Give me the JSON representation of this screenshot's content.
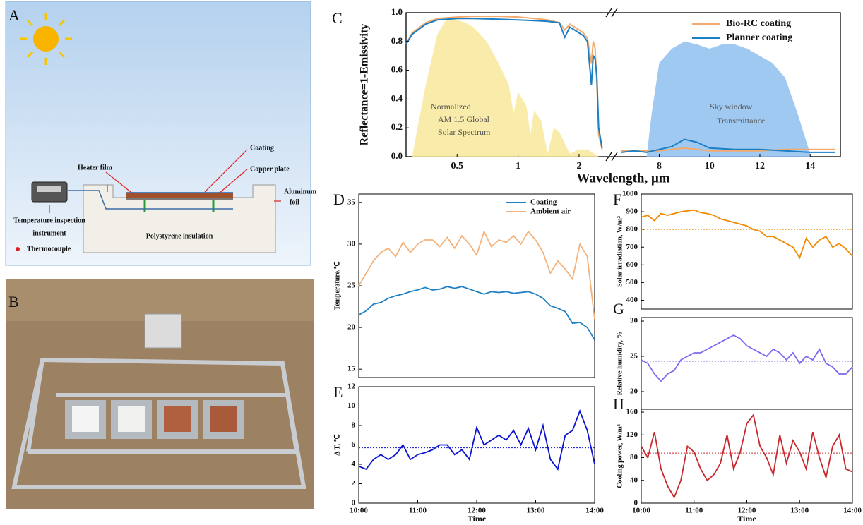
{
  "diagram": {
    "label": "A",
    "coating": "Coating",
    "heater_film": "Heater film",
    "copper_plate": "Copper plate",
    "aluminum_foil": [
      "Aluminum",
      "foil"
    ],
    "instrument": [
      "Temperature inspection",
      "instrument"
    ],
    "thermocouple": "Thermocouple",
    "insulation": "Polystyrene insulation"
  },
  "photo": {
    "label": "B"
  },
  "chart_data": [
    {
      "type": "spectrum",
      "panel": "C",
      "xlabel": "Wavelength, μm",
      "ylabel": "Reflectance=1-Emissivity",
      "ylim": [
        0,
        1
      ],
      "yticks": [
        {
          "value": 0,
          "label": "0.0"
        },
        0.2,
        0.4,
        0.6,
        0.8,
        {
          "value": 1,
          "label": "1.0"
        }
      ],
      "x_segments": [
        {
          "xlim": [
            0.28,
            2.65
          ],
          "log": true,
          "xticks": [
            0.5,
            1,
            2
          ]
        },
        {
          "xlim": [
            6.5,
            15.2
          ],
          "xticks": [
            8,
            10,
            12,
            14
          ]
        }
      ],
      "legend": "upper right",
      "annotations": [
        "Normalized",
        "AM 1.5 Global",
        "Solar Spectrum",
        "Sky window",
        "Transmittance"
      ],
      "series": [
        {
          "kind": "area",
          "color": "#f8e79a",
          "x": [
            0.3,
            0.35,
            0.4,
            0.45,
            0.5,
            0.55,
            0.6,
            0.7,
            0.8,
            0.9,
            0.95,
            1.0,
            1.1,
            1.15,
            1.2,
            1.3,
            1.4,
            1.5,
            1.6,
            1.8,
            2.0,
            2.2,
            2.5
          ],
          "values": [
            0,
            0.5,
            0.85,
            0.97,
            0.95,
            0.93,
            0.9,
            0.8,
            0.65,
            0.5,
            0.3,
            0.45,
            0.35,
            0.15,
            0.32,
            0.25,
            0.02,
            0.2,
            0.17,
            0.02,
            0.05,
            0.05,
            0
          ]
        },
        {
          "kind": "area",
          "color": "#8fbff0",
          "x": [
            7.5,
            7.7,
            8,
            8.5,
            9,
            9.5,
            10,
            10.5,
            11,
            11.5,
            12,
            12.5,
            13,
            13.5,
            14
          ],
          "values": [
            0,
            0.3,
            0.65,
            0.75,
            0.8,
            0.78,
            0.75,
            0.78,
            0.78,
            0.75,
            0.7,
            0.65,
            0.55,
            0.3,
            0.02
          ]
        },
        {
          "kind": "line",
          "name": "Bio-RC coating",
          "color": "#f2a96b",
          "x": [
            0.28,
            0.3,
            0.35,
            0.4,
            0.5,
            0.6,
            0.8,
            1.0,
            1.2,
            1.4,
            1.6,
            1.7,
            1.8,
            1.9,
            2.0,
            2.1,
            2.2,
            2.3,
            2.35,
            2.4,
            2.45,
            2.5,
            2.6,
            null,
            6.5,
            7,
            7.5,
            8,
            8.5,
            9,
            9.5,
            10,
            11,
            12,
            13,
            14,
            15
          ],
          "values": [
            0.78,
            0.86,
            0.93,
            0.96,
            0.97,
            0.975,
            0.975,
            0.97,
            0.96,
            0.95,
            0.93,
            0.88,
            0.92,
            0.9,
            0.88,
            0.86,
            0.82,
            0.65,
            0.8,
            0.75,
            0.5,
            0.15,
            0.05,
            null,
            0.04,
            0.04,
            0.04,
            0.04,
            0.05,
            0.06,
            0.05,
            0.04,
            0.04,
            0.04,
            0.05,
            0.05,
            0.05
          ]
        },
        {
          "kind": "line",
          "name": "Planner coating",
          "color": "#1b7fc4",
          "x": [
            0.28,
            0.3,
            0.35,
            0.4,
            0.5,
            0.6,
            0.8,
            1.0,
            1.2,
            1.4,
            1.6,
            1.7,
            1.8,
            1.9,
            2.0,
            2.1,
            2.2,
            2.3,
            2.35,
            2.4,
            2.45,
            2.5,
            2.6,
            null,
            6.5,
            7,
            7.5,
            8,
            8.5,
            9,
            9.5,
            10,
            11,
            12,
            13,
            14,
            15
          ],
          "values": [
            0.78,
            0.85,
            0.92,
            0.95,
            0.96,
            0.96,
            0.955,
            0.95,
            0.945,
            0.94,
            0.93,
            0.83,
            0.9,
            0.88,
            0.86,
            0.84,
            0.8,
            0.5,
            0.7,
            0.68,
            0.55,
            0.2,
            0.06,
            null,
            0.03,
            0.04,
            0.03,
            0.05,
            0.07,
            0.12,
            0.1,
            0.06,
            0.05,
            0.05,
            0.04,
            0.03,
            0.03
          ]
        }
      ]
    },
    {
      "type": "line",
      "panel": "D",
      "ylabel": "Temperature,℃",
      "legend": "upper right",
      "xlim": [
        10,
        14
      ],
      "ylim": [
        14,
        36
      ],
      "yticks": [
        15,
        20,
        25,
        30,
        35
      ],
      "x": [
        10,
        10.125,
        10.25,
        10.375,
        10.5,
        10.625,
        10.75,
        10.875,
        11,
        11.125,
        11.25,
        11.375,
        11.5,
        11.625,
        11.75,
        11.875,
        12,
        12.125,
        12.25,
        12.375,
        12.5,
        12.625,
        12.75,
        12.875,
        13,
        13.125,
        13.25,
        13.375,
        13.5,
        13.625,
        13.75,
        13.875,
        14
      ],
      "series": [
        {
          "name": "Coating",
          "color": "#1f7fc4",
          "values": [
            21.5,
            22,
            22.8,
            23,
            23.5,
            23.8,
            24,
            24.3,
            24.5,
            24.8,
            24.5,
            24.6,
            24.9,
            24.7,
            24.9,
            24.6,
            24.3,
            24,
            24.3,
            24.2,
            24.3,
            24.1,
            24.2,
            24.3,
            24.0,
            23.5,
            22.6,
            22.3,
            21.9,
            20.5,
            20.6,
            20,
            18.5
          ]
        },
        {
          "name": "Ambient air",
          "color": "#f4b27a",
          "values": [
            25,
            26.5,
            28,
            29,
            29.5,
            28.5,
            30.2,
            29,
            30,
            30.5,
            30.5,
            29.7,
            30.8,
            29.5,
            31,
            30,
            28.7,
            31.5,
            29.7,
            30.5,
            30.2,
            31,
            30,
            31.5,
            30.5,
            29,
            26.5,
            28,
            27,
            25.8,
            30,
            28.5,
            21
          ]
        }
      ]
    },
    {
      "type": "line",
      "panel": "E",
      "ylabel": "Δ T, ℃",
      "xlabel": "Time",
      "xlim": [
        10,
        14
      ],
      "xticks": [
        {
          "value": 10,
          "label": "10:00"
        },
        {
          "value": 11,
          "label": "11:00"
        },
        {
          "value": 12,
          "label": "12:00"
        },
        {
          "value": 13,
          "label": "13:00"
        },
        {
          "value": 14,
          "label": "14:00"
        }
      ],
      "ylim": [
        0,
        12
      ],
      "yticks": [
        0,
        2,
        4,
        6,
        8,
        10,
        12
      ],
      "reference_line": 5.7,
      "x": [
        10,
        10.125,
        10.25,
        10.375,
        10.5,
        10.625,
        10.75,
        10.875,
        11,
        11.125,
        11.25,
        11.375,
        11.5,
        11.625,
        11.75,
        11.875,
        12,
        12.125,
        12.25,
        12.375,
        12.5,
        12.625,
        12.75,
        12.875,
        13,
        13.125,
        13.25,
        13.375,
        13.5,
        13.625,
        13.75,
        13.875,
        14
      ],
      "series": [
        {
          "color": "#0a14d0",
          "values": [
            3.8,
            3.5,
            4.5,
            5,
            4.5,
            5,
            6,
            4.5,
            5,
            5.2,
            5.5,
            6,
            6,
            5,
            5.5,
            4.5,
            7.8,
            6,
            6.5,
            7,
            6.5,
            7.5,
            6,
            7.7,
            5.5,
            8,
            4.5,
            3.5,
            7,
            7.5,
            9.5,
            7.5,
            4
          ]
        }
      ]
    },
    {
      "type": "line",
      "panel": "F",
      "ylabel": "Solar irradiation, W/m²",
      "xlim": [
        10,
        14
      ],
      "ylim": [
        350,
        1000
      ],
      "yticks": [
        400,
        500,
        600,
        700,
        800,
        900,
        1000
      ],
      "reference_line": 800,
      "x": [
        10,
        10.125,
        10.25,
        10.375,
        10.5,
        10.625,
        10.75,
        10.875,
        11,
        11.125,
        11.25,
        11.375,
        11.5,
        11.625,
        11.75,
        11.875,
        12,
        12.125,
        12.25,
        12.375,
        12.5,
        12.625,
        12.75,
        12.875,
        13,
        13.125,
        13.25,
        13.375,
        13.5,
        13.625,
        13.75,
        13.875,
        14
      ],
      "series": [
        {
          "color": "#f08a00",
          "values": [
            870,
            880,
            850,
            890,
            880,
            890,
            900,
            905,
            910,
            895,
            890,
            880,
            860,
            850,
            840,
            830,
            820,
            800,
            790,
            760,
            760,
            740,
            720,
            700,
            640,
            750,
            700,
            740,
            760,
            700,
            720,
            690,
            650
          ]
        }
      ]
    },
    {
      "type": "line",
      "panel": "G",
      "ylabel": "Relative humidity, %",
      "xlim": [
        10,
        14
      ],
      "ylim": [
        17.5,
        30.5
      ],
      "yticks": [
        20,
        25,
        30
      ],
      "reference_line": 24.3,
      "x": [
        10,
        10.125,
        10.25,
        10.375,
        10.5,
        10.625,
        10.75,
        10.875,
        11,
        11.125,
        11.25,
        11.375,
        11.5,
        11.625,
        11.75,
        11.875,
        12,
        12.125,
        12.25,
        12.375,
        12.5,
        12.625,
        12.75,
        12.875,
        13,
        13.125,
        13.25,
        13.375,
        13.5,
        13.625,
        13.75,
        13.875,
        14
      ],
      "series": [
        {
          "color": "#7b68ee",
          "values": [
            24.5,
            24,
            22.5,
            21.5,
            22.5,
            23,
            24.5,
            25,
            25.5,
            25.5,
            26,
            26.5,
            27,
            27.5,
            28,
            27.5,
            26.5,
            26,
            25.5,
            25,
            26,
            25.5,
            24.5,
            25.5,
            24,
            25,
            24.5,
            26,
            24,
            23.5,
            22.5,
            22.5,
            23.5
          ]
        }
      ]
    },
    {
      "type": "line",
      "panel": "H",
      "ylabel": "Cooling power, W/m²",
      "xlabel": "Time",
      "xlim": [
        10,
        14
      ],
      "xticks": [
        {
          "value": 10,
          "label": "10:00"
        },
        {
          "value": 11,
          "label": "11:00"
        },
        {
          "value": 12,
          "label": "12:00"
        },
        {
          "value": 13,
          "label": "13:00"
        },
        {
          "value": 14,
          "label": "14:00"
        }
      ],
      "ylim": [
        0,
        165
      ],
      "yticks": [
        0,
        40,
        80,
        120,
        160
      ],
      "reference_line": 88,
      "x": [
        10,
        10.125,
        10.25,
        10.375,
        10.5,
        10.625,
        10.75,
        10.875,
        11,
        11.125,
        11.25,
        11.375,
        11.5,
        11.625,
        11.75,
        11.875,
        12,
        12.125,
        12.25,
        12.375,
        12.5,
        12.625,
        12.75,
        12.875,
        13,
        13.125,
        13.25,
        13.375,
        13.5,
        13.625,
        13.75,
        13.875,
        14
      ],
      "series": [
        {
          "color": "#c8282d",
          "values": [
            100,
            80,
            125,
            60,
            30,
            10,
            40,
            100,
            90,
            60,
            40,
            50,
            70,
            120,
            60,
            90,
            140,
            155,
            100,
            80,
            50,
            120,
            70,
            110,
            90,
            60,
            125,
            80,
            45,
            100,
            120,
            60,
            55
          ]
        }
      ]
    }
  ]
}
